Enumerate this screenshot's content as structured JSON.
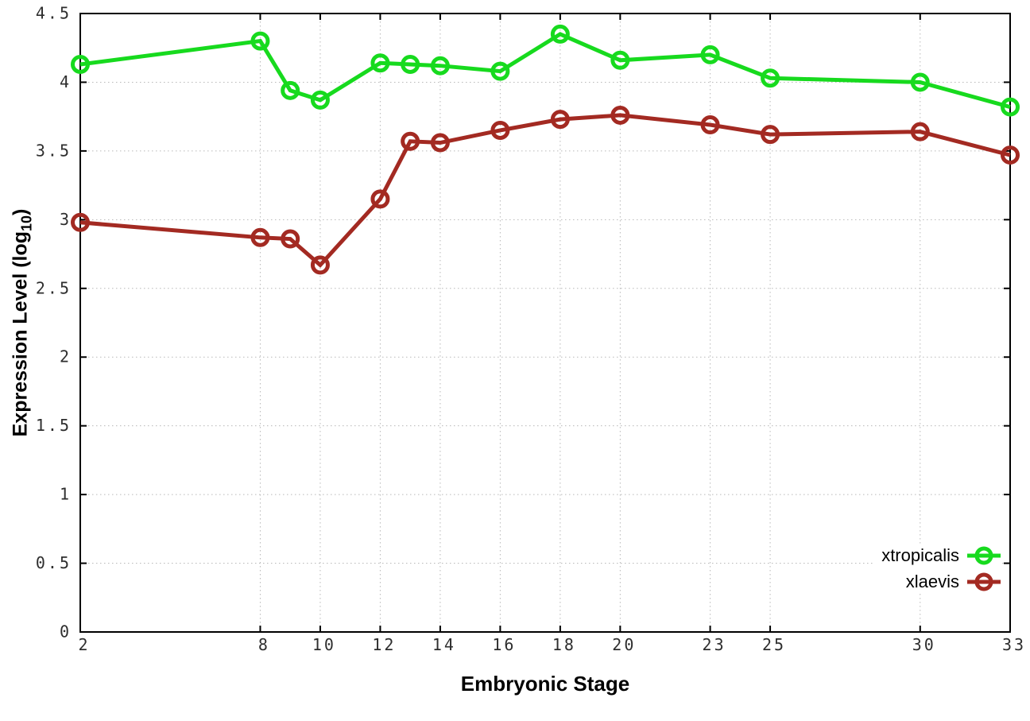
{
  "chart_data": {
    "type": "line",
    "title": "",
    "xlabel": "Embryonic Stage",
    "ylabel": "Expression Level (log10)",
    "ylabel_parts": {
      "prefix": "Expression Level (log",
      "sub": "10",
      "suffix": ")"
    },
    "x": [
      2,
      8,
      9,
      10,
      12,
      13,
      14,
      16,
      18,
      20,
      23,
      25,
      30,
      33
    ],
    "series": [
      {
        "name": "xtropicalis",
        "color": "#17da1e",
        "values": [
          4.13,
          4.3,
          3.94,
          3.87,
          4.14,
          4.13,
          4.12,
          4.08,
          4.35,
          4.16,
          4.2,
          4.03,
          4.0,
          3.82
        ]
      },
      {
        "name": "xlaevis",
        "color": "#a32a22",
        "values": [
          2.98,
          2.87,
          2.86,
          2.67,
          3.15,
          3.57,
          3.56,
          3.65,
          3.73,
          3.76,
          3.69,
          3.62,
          3.64,
          3.47
        ]
      }
    ],
    "xticks": [
      2,
      8,
      10,
      12,
      14,
      16,
      18,
      20,
      23,
      25,
      30,
      33
    ],
    "yticks": [
      0,
      0.5,
      1,
      1.5,
      2,
      2.5,
      3,
      3.5,
      4,
      4.5
    ],
    "xlim": [
      2,
      33
    ],
    "ylim": [
      0,
      4.5
    ],
    "grid": true,
    "grid_style": "dotted",
    "legend_position": "bottom-right",
    "marker": "open-circle"
  }
}
